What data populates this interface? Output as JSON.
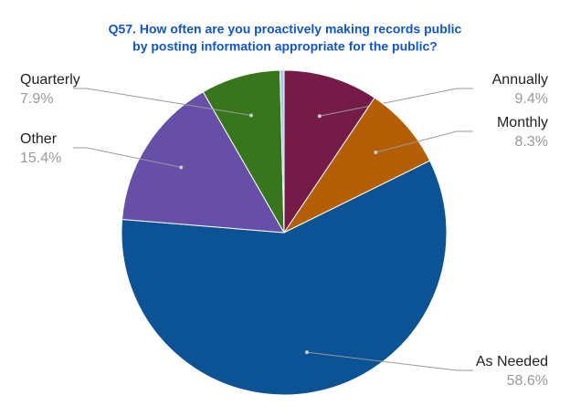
{
  "chart_data": {
    "type": "pie",
    "title": [
      "Q57. How often are you proactively making records public",
      "by posting information appropriate for the public?"
    ],
    "categories": [
      "Annually",
      "Monthly",
      "As Needed",
      "Other",
      "Quarterly",
      null
    ],
    "values": [
      9.4,
      8.3,
      58.6,
      15.4,
      7.9,
      0.4
    ],
    "value_labels": [
      "9.4%",
      "8.3%",
      "58.6%",
      "15.4%",
      "7.9%",
      null
    ],
    "colors": [
      "#741b47",
      "#b45f06",
      "#0b5394",
      "#674ea7",
      "#38761d",
      "#9fc5e8"
    ]
  }
}
